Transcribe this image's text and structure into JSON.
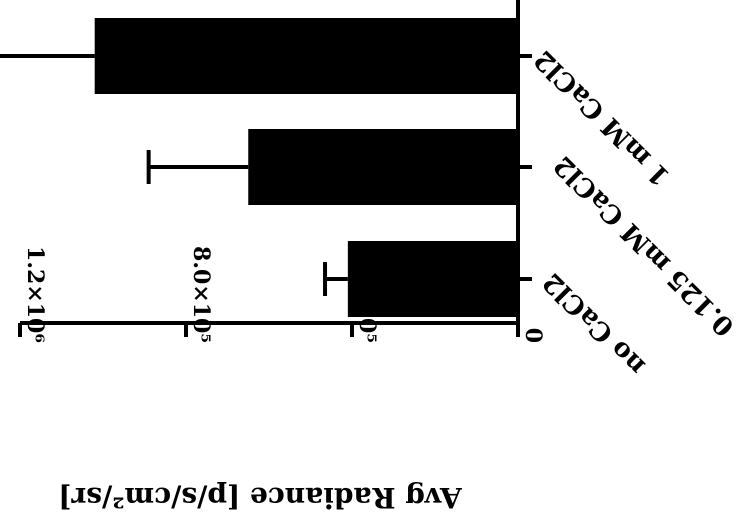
{
  "chart_data": {
    "type": "bar",
    "orientation": "horizontal",
    "rotated_180": true,
    "categories": [
      "no CaCl2",
      "0.125 mM CaCl2",
      "1 mM CaCl2"
    ],
    "values": [
      410000,
      650000,
      1020000
    ],
    "error_bars": [
      55000,
      240000,
      300000
    ],
    "xlabel": "Avg Radiance [p/s/cm²/sr]",
    "ylabel": "",
    "xlim": [
      0,
      1200000
    ],
    "ticks": [
      {
        "value": 0,
        "label": "0"
      },
      {
        "value": 400000,
        "label": "4.0×10⁵"
      },
      {
        "value": 800000,
        "label": "8.0×10⁵"
      },
      {
        "value": 1200000,
        "label": "1.2×10⁶"
      }
    ],
    "bar_color": "#000000",
    "grid": false,
    "legend": "none"
  }
}
